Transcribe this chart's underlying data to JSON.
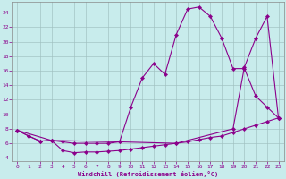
{
  "xlabel": "Windchill (Refroidissement éolien,°C)",
  "bg_color": "#c8ecec",
  "line_color": "#8b008b",
  "grid_color": "#a0c0c0",
  "xlim": [
    -0.5,
    23.5
  ],
  "ylim": [
    3.5,
    25.5
  ],
  "yticks": [
    4,
    6,
    8,
    10,
    12,
    14,
    16,
    18,
    20,
    22,
    24
  ],
  "xticks": [
    0,
    1,
    2,
    3,
    4,
    5,
    6,
    7,
    8,
    9,
    10,
    11,
    12,
    13,
    14,
    15,
    16,
    17,
    18,
    19,
    20,
    21,
    22,
    23
  ],
  "line1_x": [
    0,
    1,
    2,
    3,
    4,
    5,
    6,
    7,
    8,
    9,
    10,
    11,
    12,
    13,
    14,
    15,
    16,
    17,
    18,
    19,
    20,
    21,
    22,
    23
  ],
  "line1_y": [
    7.8,
    7.0,
    6.3,
    6.4,
    5.0,
    4.7,
    4.8,
    4.8,
    4.9,
    5.0,
    5.2,
    5.4,
    5.6,
    5.8,
    6.0,
    6.2,
    6.5,
    6.8,
    7.0,
    7.5,
    8.0,
    8.5,
    9.0,
    9.5
  ],
  "line2_x": [
    0,
    1,
    2,
    3,
    4,
    5,
    6,
    7,
    8,
    9,
    10,
    11,
    12,
    13,
    14,
    15,
    16,
    17,
    18,
    19,
    20,
    21,
    22,
    23
  ],
  "line2_y": [
    7.8,
    7.0,
    6.3,
    6.4,
    6.2,
    6.0,
    6.0,
    6.0,
    6.0,
    6.2,
    11.0,
    15.0,
    17.0,
    15.5,
    21.0,
    24.5,
    24.8,
    23.5,
    20.5,
    16.3,
    16.3,
    12.5,
    11.0,
    9.5
  ],
  "line3_x": [
    0,
    3,
    9,
    14,
    19,
    20,
    21,
    22,
    23
  ],
  "line3_y": [
    7.8,
    6.4,
    6.2,
    6.0,
    8.0,
    16.5,
    20.5,
    23.5,
    9.5
  ]
}
